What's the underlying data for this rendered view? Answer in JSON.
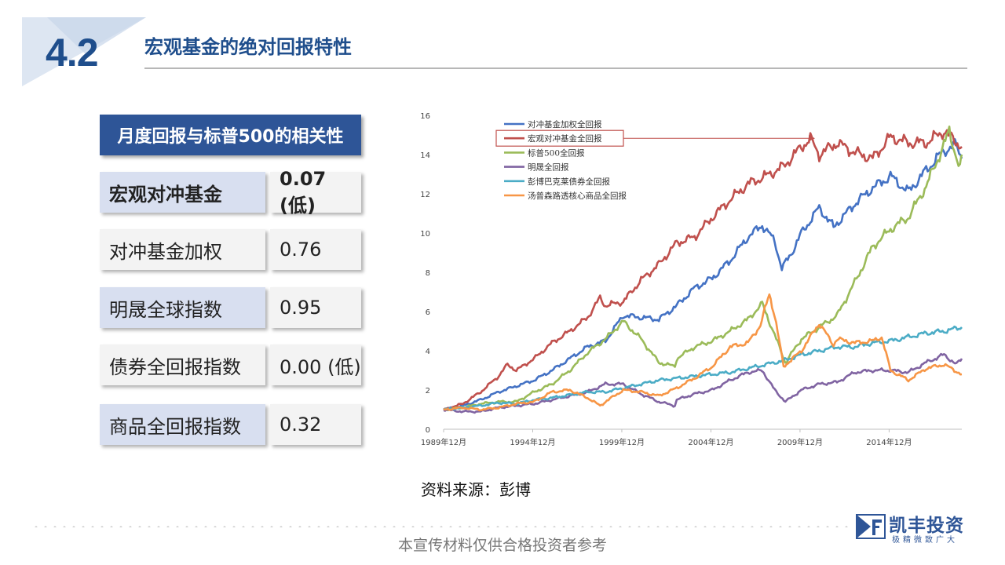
{
  "header": {
    "section_number": "4.2",
    "title": "宏观基金的绝对回报特性"
  },
  "table": {
    "header": "月度回报与标普500的相关性",
    "rows": [
      {
        "name": "宏观对冲基金",
        "value": "0.07 (低)"
      },
      {
        "name": "对冲基金加权",
        "value": "0.76"
      },
      {
        "name": "明晟全球指数",
        "value": "0.95"
      },
      {
        "name": "债券全回报指数",
        "value": "0.00 (低)"
      },
      {
        "name": "商品全回报指数",
        "value": "0.32"
      }
    ]
  },
  "chart_data": {
    "type": "line",
    "title": "",
    "xlabel": "",
    "ylabel": "",
    "ylim": [
      0,
      16
    ],
    "yticks": [
      "0",
      "2",
      "4",
      "6",
      "8",
      "10",
      "12",
      "14",
      "16"
    ],
    "x_range": [
      1989.92,
      2019.0
    ],
    "xticks": [
      {
        "year": 1989.92,
        "label": "1989年12月"
      },
      {
        "year": 1994.92,
        "label": "1994年12月"
      },
      {
        "year": 1999.92,
        "label": "1999年12月"
      },
      {
        "year": 2004.92,
        "label": "2004年12月"
      },
      {
        "year": 2009.92,
        "label": "2009年12月"
      },
      {
        "year": 2014.92,
        "label": "2014年12月"
      }
    ],
    "legend_position": "top-left",
    "highlighted_series": "宏观对冲基金全回报",
    "series": [
      {
        "name": "对冲基金加权全回报",
        "color": "#4472c4",
        "points": [
          [
            1989.92,
            1.0
          ],
          [
            1991,
            1.2
          ],
          [
            1992,
            1.5
          ],
          [
            1993,
            1.9
          ],
          [
            1994,
            2.2
          ],
          [
            1995,
            2.5
          ],
          [
            1996,
            3.0
          ],
          [
            1997,
            3.6
          ],
          [
            1998,
            4.2
          ],
          [
            1999,
            4.5
          ],
          [
            2000,
            5.8
          ],
          [
            2001,
            5.7
          ],
          [
            2002,
            5.6
          ],
          [
            2003,
            6.3
          ],
          [
            2004,
            7.2
          ],
          [
            2005,
            7.7
          ],
          [
            2006,
            8.6
          ],
          [
            2007,
            9.8
          ],
          [
            2007.8,
            10.4
          ],
          [
            2008.5,
            9.6
          ],
          [
            2008.9,
            8.2
          ],
          [
            2009.4,
            8.9
          ],
          [
            2010,
            10.0
          ],
          [
            2011,
            11.3
          ],
          [
            2011.8,
            10.3
          ],
          [
            2012,
            10.5
          ],
          [
            2013,
            11.5
          ],
          [
            2014,
            12.3
          ],
          [
            2015,
            12.9
          ],
          [
            2016,
            12.1
          ],
          [
            2017,
            13.2
          ],
          [
            2018,
            14.2
          ],
          [
            2018.7,
            14.5
          ],
          [
            2019,
            13.8
          ]
        ]
      },
      {
        "name": "宏观对冲基金全回报",
        "color": "#c0504d",
        "points": [
          [
            1989.92,
            1.0
          ],
          [
            1991,
            1.3
          ],
          [
            1992,
            1.9
          ],
          [
            1993,
            2.7
          ],
          [
            1993.5,
            3.3
          ],
          [
            1994,
            3.0
          ],
          [
            1995,
            3.6
          ],
          [
            1996,
            4.4
          ],
          [
            1997,
            5.0
          ],
          [
            1998,
            5.7
          ],
          [
            1998.7,
            6.7
          ],
          [
            1999,
            6.3
          ],
          [
            2000,
            6.5
          ],
          [
            2001,
            7.6
          ],
          [
            2002,
            8.4
          ],
          [
            2003,
            9.5
          ],
          [
            2004,
            9.8
          ],
          [
            2005,
            10.8
          ],
          [
            2006,
            11.7
          ],
          [
            2007,
            12.5
          ],
          [
            2008,
            12.9
          ],
          [
            2009,
            13.4
          ],
          [
            2010,
            14.4
          ],
          [
            2010.5,
            14.8
          ],
          [
            2011,
            14.0
          ],
          [
            2012,
            14.6
          ],
          [
            2013,
            14.1
          ],
          [
            2014,
            13.8
          ],
          [
            2015,
            14.9
          ],
          [
            2016,
            14.6
          ],
          [
            2017,
            14.6
          ],
          [
            2018,
            15.2
          ],
          [
            2019,
            14.4
          ]
        ]
      },
      {
        "name": "标普500全回报",
        "color": "#9bbb59",
        "points": [
          [
            1989.92,
            1.0
          ],
          [
            1991,
            1.1
          ],
          [
            1992,
            1.3
          ],
          [
            1993,
            1.4
          ],
          [
            1994,
            1.4
          ],
          [
            1995,
            1.9
          ],
          [
            1996,
            2.3
          ],
          [
            1997,
            3.0
          ],
          [
            1998,
            3.9
          ],
          [
            1999,
            4.6
          ],
          [
            2000,
            5.5
          ],
          [
            2001,
            4.6
          ],
          [
            2002,
            3.4
          ],
          [
            2002.9,
            3.2
          ],
          [
            2003,
            3.6
          ],
          [
            2004,
            4.2
          ],
          [
            2005,
            4.5
          ],
          [
            2006,
            5.0
          ],
          [
            2007,
            5.6
          ],
          [
            2007.8,
            6.4
          ],
          [
            2008.5,
            4.8
          ],
          [
            2009.1,
            3.4
          ],
          [
            2010,
            4.6
          ],
          [
            2011,
            5.2
          ],
          [
            2012,
            5.8
          ],
          [
            2013,
            7.5
          ],
          [
            2014,
            9.3
          ],
          [
            2015,
            10.2
          ],
          [
            2016,
            10.8
          ],
          [
            2017,
            12.4
          ],
          [
            2018,
            14.5
          ],
          [
            2018.3,
            15.2
          ],
          [
            2018.9,
            13.2
          ],
          [
            2019,
            14.0
          ]
        ]
      },
      {
        "name": "明晟全回报",
        "color": "#8064a2",
        "points": [
          [
            1989.92,
            1.0
          ],
          [
            1991,
            0.9
          ],
          [
            1992,
            0.9
          ],
          [
            1993,
            1.1
          ],
          [
            1994,
            1.2
          ],
          [
            1995,
            1.3
          ],
          [
            1996,
            1.5
          ],
          [
            1997,
            1.7
          ],
          [
            1998,
            1.9
          ],
          [
            1999,
            2.3
          ],
          [
            2000,
            2.3
          ],
          [
            2001,
            1.8
          ],
          [
            2002,
            1.4
          ],
          [
            2002.9,
            1.2
          ],
          [
            2003,
            1.5
          ],
          [
            2004,
            1.8
          ],
          [
            2005,
            2.0
          ],
          [
            2006,
            2.5
          ],
          [
            2007,
            2.9
          ],
          [
            2007.8,
            3.0
          ],
          [
            2008.5,
            2.0
          ],
          [
            2009.1,
            1.4
          ],
          [
            2010,
            2.0
          ],
          [
            2011,
            2.3
          ],
          [
            2012,
            2.4
          ],
          [
            2013,
            2.9
          ],
          [
            2014,
            3.0
          ],
          [
            2015,
            3.0
          ],
          [
            2016,
            2.9
          ],
          [
            2017,
            3.4
          ],
          [
            2018,
            3.8
          ],
          [
            2018.7,
            3.3
          ],
          [
            2019,
            3.6
          ]
        ]
      },
      {
        "name": "彭博巴克莱债券全回报",
        "color": "#4bacc6",
        "points": [
          [
            1989.92,
            1.0
          ],
          [
            1991,
            1.1
          ],
          [
            1992,
            1.2
          ],
          [
            1993,
            1.35
          ],
          [
            1994,
            1.3
          ],
          [
            1995,
            1.5
          ],
          [
            1996,
            1.6
          ],
          [
            1997,
            1.75
          ],
          [
            1998,
            1.9
          ],
          [
            1999,
            1.9
          ],
          [
            2000,
            2.1
          ],
          [
            2001,
            2.3
          ],
          [
            2002,
            2.5
          ],
          [
            2003,
            2.6
          ],
          [
            2004,
            2.7
          ],
          [
            2005,
            2.8
          ],
          [
            2006,
            2.9
          ],
          [
            2007,
            3.1
          ],
          [
            2008,
            3.3
          ],
          [
            2009,
            3.5
          ],
          [
            2010,
            3.8
          ],
          [
            2011,
            4.0
          ],
          [
            2012,
            4.2
          ],
          [
            2013,
            4.2
          ],
          [
            2014,
            4.4
          ],
          [
            2015,
            4.5
          ],
          [
            2016,
            4.7
          ],
          [
            2017,
            4.9
          ],
          [
            2018,
            5.0
          ],
          [
            2019,
            5.2
          ]
        ]
      },
      {
        "name": "汤普森路透核心商品全回报",
        "color": "#f79646",
        "points": [
          [
            1989.92,
            1.0
          ],
          [
            1991,
            1.1
          ],
          [
            1992,
            1.0
          ],
          [
            1993,
            1.1
          ],
          [
            1994,
            1.3
          ],
          [
            1995,
            1.4
          ],
          [
            1996,
            1.9
          ],
          [
            1997,
            2.0
          ],
          [
            1998,
            1.6
          ],
          [
            1998.7,
            1.2
          ],
          [
            1999,
            1.4
          ],
          [
            2000,
            2.0
          ],
          [
            2001,
            1.9
          ],
          [
            2002,
            1.7
          ],
          [
            2003,
            2.1
          ],
          [
            2004,
            2.6
          ],
          [
            2005,
            3.2
          ],
          [
            2006,
            4.2
          ],
          [
            2007,
            4.4
          ],
          [
            2007.7,
            5.3
          ],
          [
            2008.2,
            6.9
          ],
          [
            2008.5,
            5.8
          ],
          [
            2009,
            3.2
          ],
          [
            2010,
            4.0
          ],
          [
            2011,
            5.4
          ],
          [
            2011.8,
            4.3
          ],
          [
            2012,
            4.6
          ],
          [
            2013,
            4.4
          ],
          [
            2014,
            4.5
          ],
          [
            2014.5,
            4.7
          ],
          [
            2015,
            3.0
          ],
          [
            2016,
            2.5
          ],
          [
            2017,
            3.1
          ],
          [
            2018,
            3.3
          ],
          [
            2019,
            2.8
          ]
        ]
      }
    ]
  },
  "source": "资料来源：彭博",
  "footer": {
    "disclaimer": "本宣传材料仅供合格投资者参考",
    "logo_name": "凯丰投资",
    "logo_slogan": "极精微致广大"
  },
  "colors": {
    "brand_blue": "#1f4e8c",
    "table_header": "#2e5597",
    "name_cell": "#d8dff0"
  }
}
